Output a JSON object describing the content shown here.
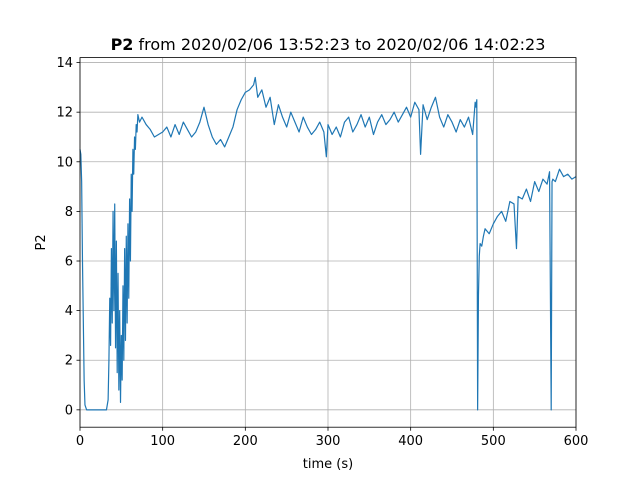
{
  "chart_data": {
    "type": "line",
    "title_bold": "P2",
    "title_rest": " from 2020/02/06 13:52:23 to 2020/02/06 14:02:23",
    "xlabel": "time (s)",
    "ylabel": "P2",
    "xlim": [
      0,
      600
    ],
    "ylim": [
      -0.7,
      14.2
    ],
    "xticks": [
      0,
      100,
      200,
      300,
      400,
      500,
      600
    ],
    "yticks": [
      0,
      2,
      4,
      6,
      8,
      10,
      12,
      14
    ],
    "grid": true,
    "color": "#1f77b4",
    "series": [
      {
        "x": [
          0,
          1,
          2,
          3,
          4,
          5,
          6,
          8,
          10,
          12,
          14,
          16,
          18,
          20,
          22,
          24,
          26,
          28,
          30,
          32,
          34,
          35,
          36,
          37,
          38,
          39,
          40,
          41,
          42,
          43,
          44,
          45,
          46,
          47,
          48,
          49,
          50,
          51,
          52,
          53,
          54,
          55,
          56,
          57,
          58,
          59,
          60,
          61,
          62,
          63,
          64,
          65,
          66,
          67,
          68,
          69,
          70,
          72,
          75,
          80,
          85,
          90,
          95,
          100,
          105,
          110,
          115,
          120,
          125,
          130,
          135,
          140,
          145,
          150,
          155,
          160,
          165,
          170,
          175,
          180,
          185,
          190,
          195,
          200,
          205,
          210,
          212,
          215,
          220,
          225,
          230,
          235,
          240,
          245,
          250,
          255,
          260,
          265,
          270,
          275,
          280,
          285,
          290,
          295,
          298,
          300,
          305,
          310,
          315,
          320,
          325,
          330,
          335,
          340,
          345,
          350,
          355,
          360,
          365,
          370,
          375,
          380,
          385,
          390,
          395,
          400,
          405,
          410,
          412,
          415,
          420,
          425,
          430,
          435,
          440,
          445,
          450,
          455,
          460,
          465,
          470,
          475,
          478,
          479,
          480,
          481,
          482,
          483,
          484,
          486,
          488,
          490,
          495,
          500,
          505,
          510,
          515,
          520,
          525,
          528,
          530,
          535,
          540,
          545,
          550,
          555,
          560,
          565,
          568,
          570,
          571,
          572,
          575,
          580,
          585,
          590,
          595,
          600
        ],
        "y": [
          10.5,
          10.3,
          9.2,
          6.0,
          3.6,
          1.2,
          0.2,
          0.0,
          0.0,
          0.0,
          0.0,
          0.0,
          0.0,
          0.0,
          0.0,
          0.0,
          0.0,
          0.0,
          0.0,
          0.0,
          0.4,
          2.0,
          4.5,
          2.6,
          6.5,
          3.5,
          8.0,
          4.0,
          8.3,
          2.5,
          6.8,
          1.5,
          5.5,
          0.8,
          4.0,
          0.3,
          3.0,
          1.2,
          5.0,
          2.0,
          6.5,
          2.8,
          7.0,
          3.5,
          7.5,
          4.5,
          8.5,
          6.0,
          9.5,
          8.0,
          10.5,
          9.5,
          11.0,
          10.5,
          11.5,
          11.2,
          11.9,
          11.6,
          11.8,
          11.5,
          11.3,
          11.0,
          11.1,
          11.2,
          11.4,
          11.0,
          11.5,
          11.1,
          11.6,
          11.3,
          11.0,
          11.2,
          11.6,
          12.2,
          11.5,
          11.0,
          10.7,
          10.9,
          10.6,
          11.0,
          11.4,
          12.1,
          12.5,
          12.8,
          12.9,
          13.1,
          13.4,
          12.6,
          12.9,
          12.2,
          12.6,
          11.5,
          12.3,
          11.8,
          11.4,
          12.0,
          11.6,
          11.2,
          11.8,
          11.4,
          11.1,
          11.3,
          11.6,
          11.2,
          10.2,
          11.5,
          11.1,
          11.4,
          11.0,
          11.6,
          11.8,
          11.2,
          11.5,
          11.9,
          11.4,
          11.8,
          11.1,
          11.6,
          11.9,
          11.5,
          11.7,
          12.0,
          11.6,
          11.9,
          12.2,
          11.8,
          12.4,
          12.1,
          10.3,
          12.3,
          11.7,
          12.2,
          12.6,
          11.8,
          11.4,
          11.9,
          11.6,
          11.2,
          11.7,
          11.4,
          11.8,
          11.1,
          12.4,
          12.2,
          12.5,
          0.0,
          4.6,
          6.2,
          6.7,
          6.6,
          7.0,
          7.3,
          7.1,
          7.5,
          7.8,
          8.0,
          7.6,
          8.4,
          8.3,
          6.5,
          8.6,
          8.5,
          8.9,
          8.4,
          9.2,
          8.8,
          9.3,
          9.1,
          9.6,
          0.0,
          9.2,
          9.3,
          9.2,
          9.7,
          9.4,
          9.5,
          9.3,
          9.4
        ]
      }
    ]
  }
}
